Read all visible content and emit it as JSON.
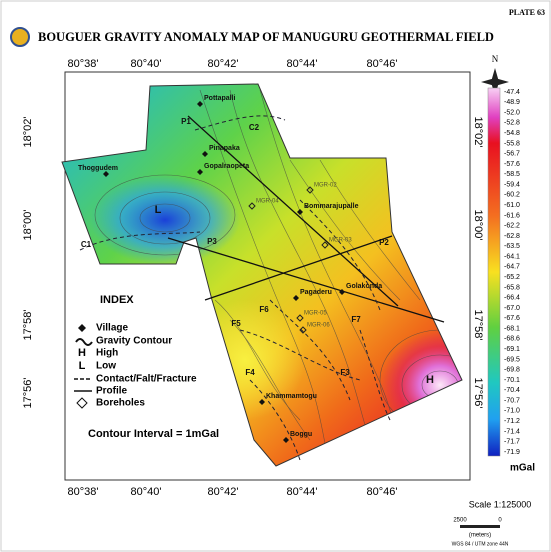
{
  "header": {
    "plate": "PLATE 63",
    "title": "BOUGUER GRAVITY ANOMALY MAP OF MANUGURU GEOTHERMAL FIELD"
  },
  "north": "N",
  "longitude_labels": [
    "80°38'",
    "80°40'",
    "80°42'",
    "80°44'",
    "80°46'"
  ],
  "latitude_labels": [
    "18°02'",
    "18°00'",
    "17°58'",
    "17°56'"
  ],
  "places": [
    "Pottapalli",
    "Pinapaka",
    "Thoggudem",
    "Gopalraopeta",
    "Bommarajupalle",
    "Pagaderu",
    "Golakonda",
    "Khammamtogu",
    "Boggu"
  ],
  "boreholes": [
    "MGR-02",
    "MGR-04",
    "MGR-03",
    "MGR-05",
    "MGR-06"
  ],
  "map_labels": [
    "P1",
    "P2",
    "P3",
    "C1",
    "C2",
    "L",
    "H",
    "F3",
    "F4",
    "F5",
    "F6",
    "F7"
  ],
  "legend": {
    "title": "INDEX",
    "items": [
      "Village",
      "Gravity Contour",
      "High",
      "Low",
      "Contact/Falt/Fracture",
      "Profile",
      "Boreholes"
    ],
    "symbols": [
      "H",
      "L"
    ]
  },
  "contour_interval": "Contour Interval = 1mGal",
  "colorbar": {
    "labels": [
      "-47.4",
      "-48.9",
      "-52.0",
      "-52.8",
      "-54.8",
      "-55.8",
      "-56.7",
      "-57.6",
      "-58.5",
      "-59.4",
      "-60.2",
      "-61.0",
      "-61.6",
      "-62.2",
      "-62.8",
      "-63.5",
      "-64.1",
      "-64.7",
      "-65.2",
      "-65.8",
      "-66.4",
      "-67.0",
      "-67.6",
      "-68.1",
      "-68.6",
      "-69.1",
      "-69.5",
      "-69.8",
      "-70.1",
      "-70.4",
      "-70.7",
      "-71.0",
      "-71.2",
      "-71.4",
      "-71.7",
      "-71.9"
    ],
    "unit": "mGal"
  },
  "scale": {
    "title": "Scale 1:125000",
    "ticks": [
      "2500",
      "0"
    ],
    "unit": "(meters)",
    "datum": "WGS 84 / UTM zone 44N"
  }
}
